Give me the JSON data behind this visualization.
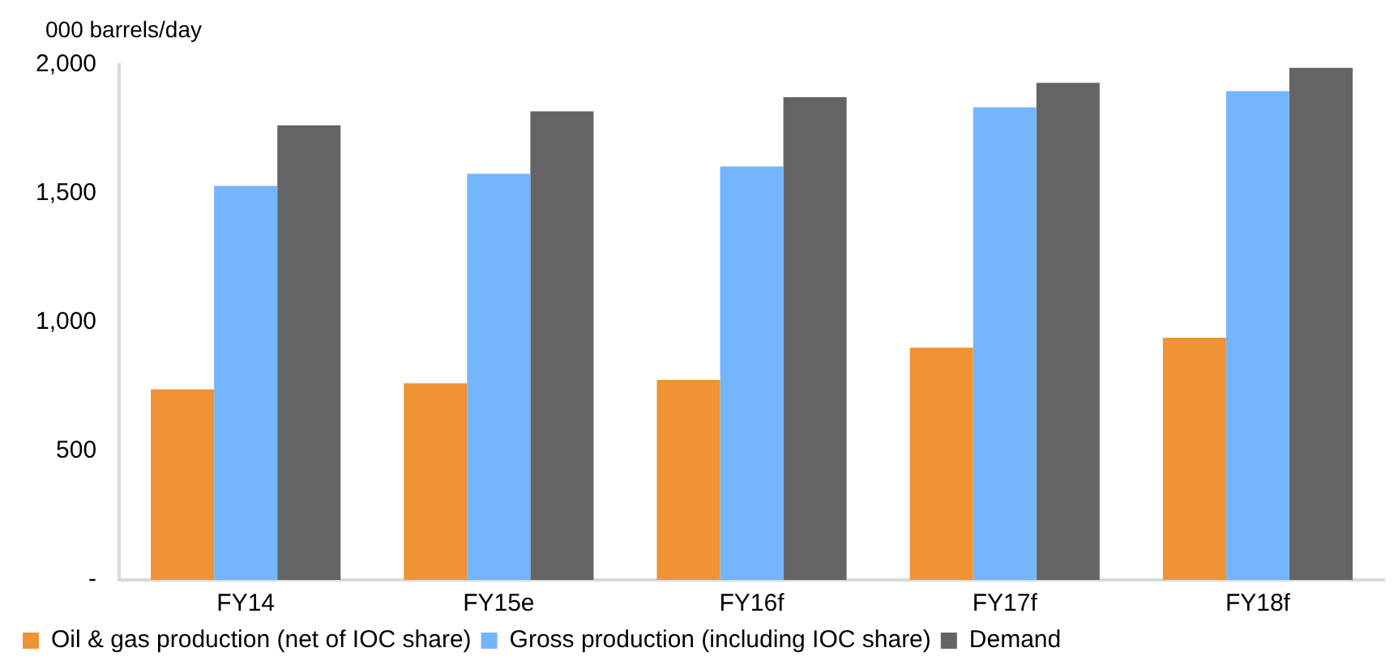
{
  "chart_data": {
    "type": "bar",
    "ylabel": "000 barrels/day",
    "categories": [
      "FY14",
      "FY15e",
      "FY16f",
      "FY17f",
      "FY18f"
    ],
    "series": [
      {
        "name": "Oil & gas production (net of IOC share)",
        "color": "#ef9334",
        "values": [
          740,
          763,
          777,
          902,
          940
        ]
      },
      {
        "name": "Gross production (including IOC share)",
        "color": "#73b6fd",
        "values": [
          1530,
          1577,
          1605,
          1835,
          1898
        ]
      },
      {
        "name": "Demand",
        "color": "#646464",
        "values": [
          1765,
          1819,
          1874,
          1930,
          1988
        ]
      }
    ],
    "ylim": [
      0,
      2000
    ],
    "yticks": [
      {
        "value": 0,
        "label": "-"
      },
      500,
      {
        "value": 1000,
        "label": "1,000"
      },
      {
        "value": 1500,
        "label": "1,500"
      },
      {
        "value": 2000,
        "label": "2,000"
      }
    ],
    "grid": false,
    "legend": "bottom"
  }
}
